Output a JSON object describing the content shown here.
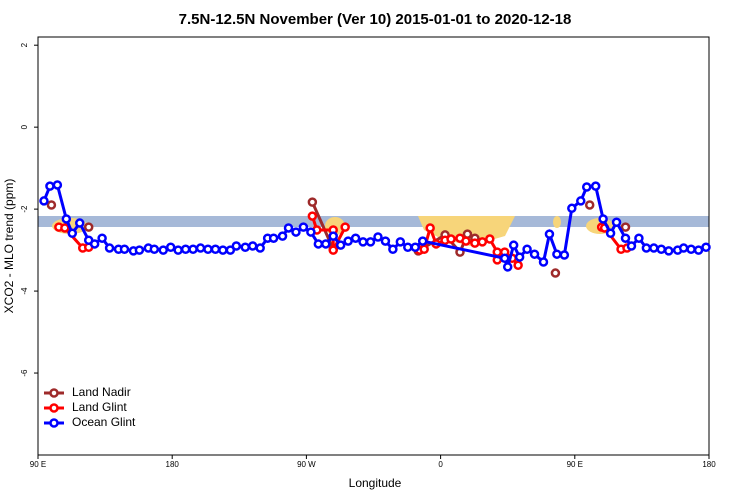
{
  "chart_data": {
    "type": "line",
    "title": "7.5N-12.5N November (Ver 10)   2015-01-01 to 2020-12-18",
    "x_label": "Longitude",
    "y_label": "XCO2 - MLO trend (ppm)",
    "xlim": [
      90,
      540
    ],
    "ylim": [
      -8,
      2.2
    ],
    "xticks": [
      {
        "value": 90,
        "label": "90 E"
      },
      180,
      {
        "value": 270,
        "label": "90 W"
      },
      {
        "value": 360,
        "label": "0"
      },
      {
        "value": 450,
        "label": "90 E"
      },
      {
        "value": 540,
        "label": "180"
      }
    ],
    "yticks": [
      -6,
      -4,
      -2,
      0,
      2
    ],
    "legend": "bottom-left",
    "series": [
      {
        "name": "Land Nadir",
        "color": "#9e2a2a",
        "x": [
          99,
          null,
          124,
          null,
          274,
          288,
          null,
          345,
          363,
          373,
          378,
          383,
          null,
          437,
          null,
          460,
          null,
          484
        ],
        "values": [
          -1.9,
          null,
          -2.44,
          null,
          -1.83,
          -2.98,
          null,
          -3.02,
          -2.63,
          -3.05,
          -2.61,
          -2.71,
          null,
          -3.56,
          null,
          -1.9,
          null,
          -2.44
        ]
      },
      {
        "name": "Land Glint",
        "color": "#ff0000",
        "x": [
          104,
          108,
          120,
          124,
          null,
          274,
          277,
          288,
          288,
          296,
          null,
          346,
          349,
          353,
          357,
          363,
          367,
          373,
          377,
          383,
          388,
          393,
          398,
          398,
          403,
          408,
          412,
          null,
          468,
          470,
          481,
          485
        ],
        "values": [
          -2.44,
          -2.46,
          -2.95,
          -2.93,
          null,
          -2.17,
          -2.51,
          -2.51,
          -3.0,
          -2.44,
          null,
          -3.0,
          -2.98,
          -2.46,
          -2.85,
          -2.76,
          -2.73,
          -2.71,
          -2.78,
          -2.83,
          -2.8,
          -2.73,
          -3.05,
          -3.24,
          -3.05,
          -3.2,
          -3.37,
          null,
          -2.44,
          -2.46,
          -2.98,
          -2.95
        ]
      },
      {
        "name": "Ocean Glint",
        "color": "#0000ff",
        "x": [
          94,
          98,
          103,
          109,
          113,
          118,
          124,
          128,
          133,
          138,
          144,
          148,
          154,
          158,
          164,
          168,
          174,
          179,
          184,
          189,
          194,
          199,
          204,
          209,
          214,
          219,
          223,
          229,
          234,
          239,
          244,
          248,
          254,
          258,
          263,
          268,
          273,
          278,
          283,
          288,
          293,
          298,
          303,
          308,
          313,
          318,
          323,
          328,
          333,
          338,
          343,
          348,
          403,
          405,
          409,
          413,
          418,
          423,
          429,
          433,
          438,
          443,
          448,
          454,
          458,
          464,
          469,
          474,
          478,
          484,
          488,
          493,
          498,
          503,
          508,
          513,
          519,
          523,
          528,
          533,
          538
        ],
        "values": [
          -1.8,
          -1.44,
          -1.41,
          -2.24,
          -2.59,
          -2.34,
          -2.76,
          -2.85,
          -2.71,
          -2.95,
          -2.98,
          -2.98,
          -3.02,
          -3.0,
          -2.95,
          -2.98,
          -3.0,
          -2.93,
          -3.0,
          -2.98,
          -2.98,
          -2.95,
          -2.98,
          -2.98,
          -3.0,
          -3.0,
          -2.9,
          -2.93,
          -2.9,
          -2.95,
          -2.71,
          -2.71,
          -2.66,
          -2.46,
          -2.56,
          -2.44,
          -2.56,
          -2.85,
          -2.85,
          -2.66,
          -2.88,
          -2.78,
          -2.71,
          -2.8,
          -2.8,
          -2.68,
          -2.78,
          -2.98,
          -2.8,
          -2.93,
          -2.93,
          -2.78,
          -3.2,
          -3.41,
          -2.88,
          -3.17,
          -2.98,
          -3.1,
          -3.29,
          -2.61,
          -3.1,
          -3.12,
          -1.98,
          -1.8,
          -1.46,
          -1.44,
          -2.24,
          -2.59,
          -2.32,
          -2.71,
          -2.9,
          -2.71,
          -2.95,
          -2.95,
          -2.98,
          -3.02,
          -3.0,
          -2.95,
          -2.98,
          -3.0,
          -2.93
        ]
      }
    ]
  }
}
